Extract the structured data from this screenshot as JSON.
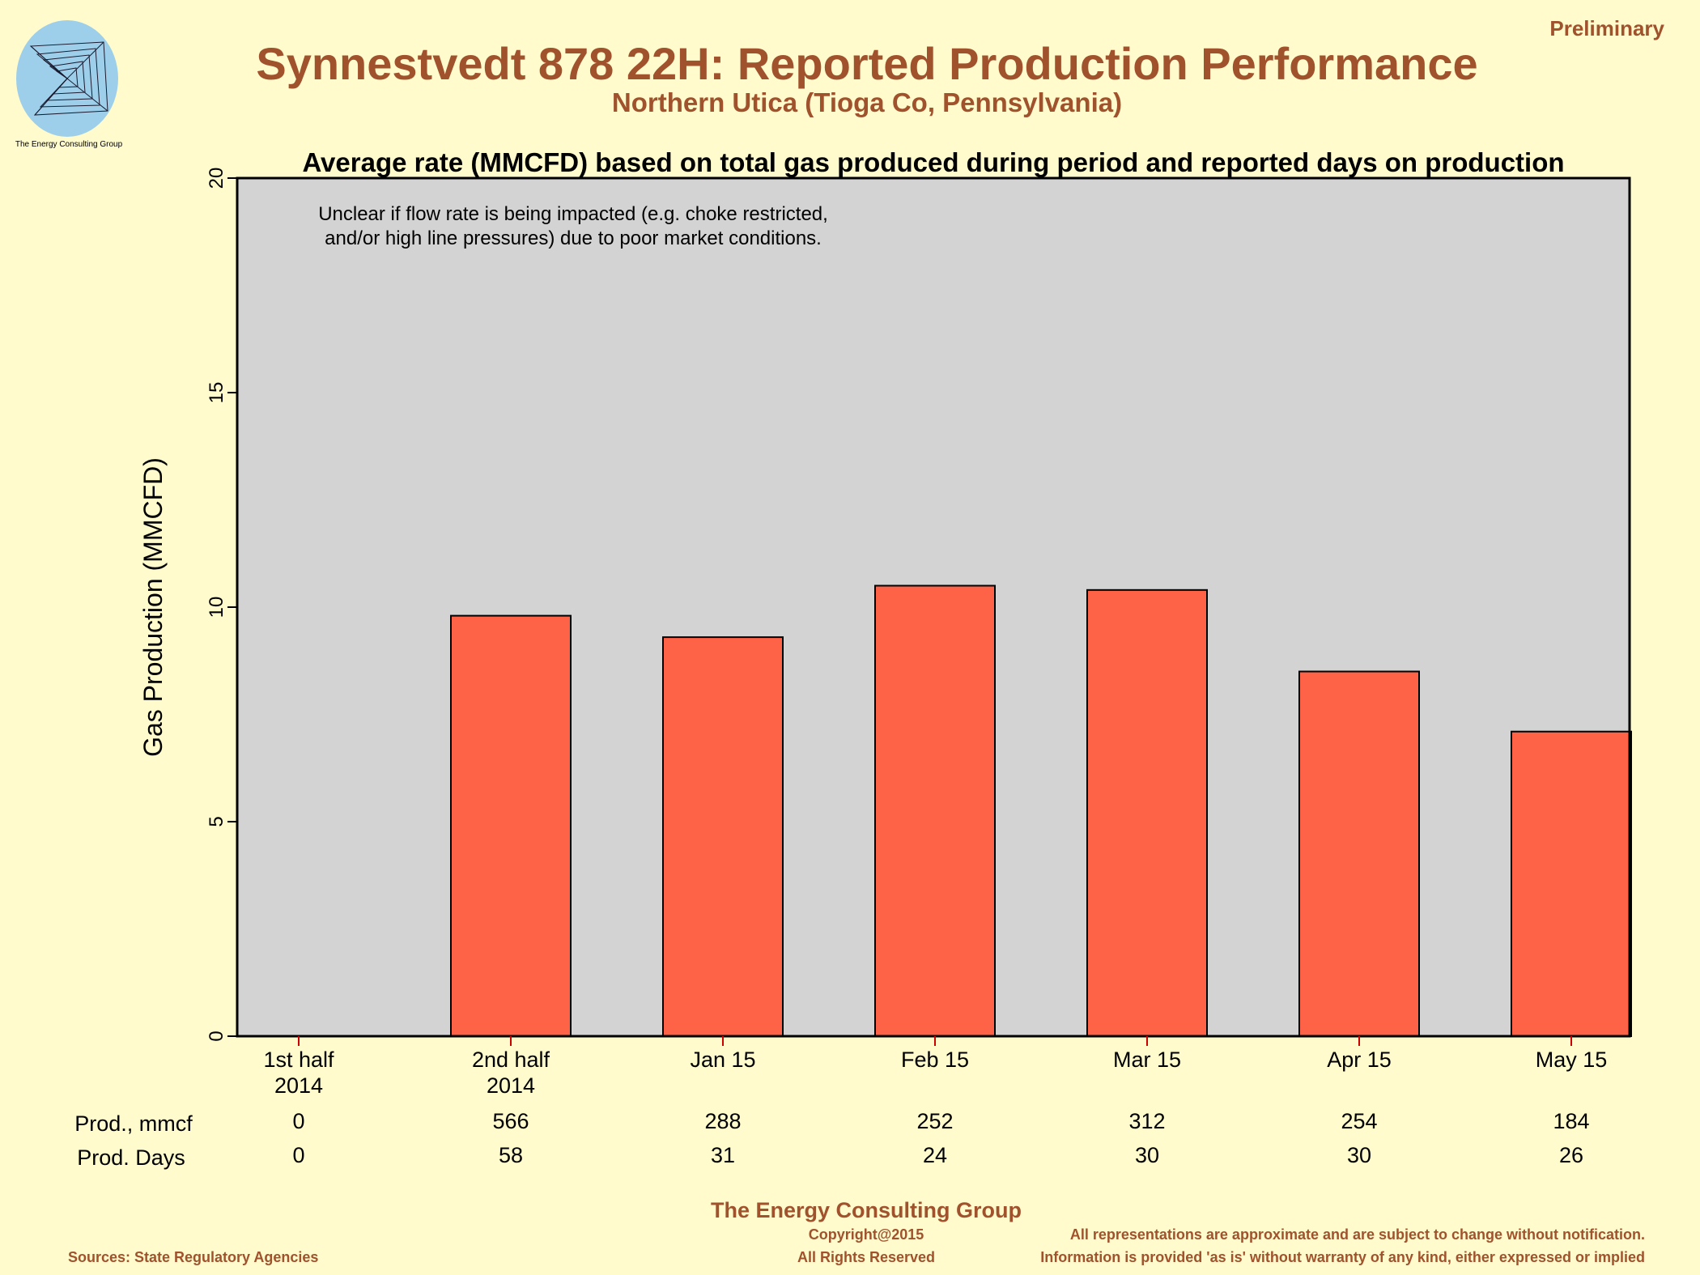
{
  "header": {
    "status": "Preliminary",
    "title": "Synnestvedt 878 22H: Reported Production Performance",
    "subtitle": "Northern Utica (Tioga Co, Pennsylvania)",
    "logo_text": "The Energy Consulting Group"
  },
  "colors": {
    "background": "#fffbcc",
    "brand_text": "#a0522d",
    "plot_background": "#d3d3d3",
    "bar_fill": "#ff6347",
    "axis_tick": "#cc0000"
  },
  "chart_data": {
    "type": "bar",
    "title": "Average rate (MMCFD) based on total gas produced during period and reported days on production",
    "ylabel": "Gas Production (MMCFD)",
    "xlabel": "",
    "ylim": [
      0,
      20
    ],
    "yticks": [
      0,
      5,
      10,
      15,
      20
    ],
    "categories": [
      [
        "1st half",
        "2014"
      ],
      [
        "2nd half",
        "2014"
      ],
      [
        "Jan 15"
      ],
      [
        "Feb 15"
      ],
      [
        "Mar 15"
      ],
      [
        "Apr 15"
      ],
      [
        "May 15"
      ]
    ],
    "values": [
      0,
      9.8,
      9.3,
      10.5,
      10.4,
      8.5,
      7.1
    ],
    "annotation": [
      "Unclear if flow rate is being impacted (e.g. choke restricted,",
      "and/or high line pressures) due to poor market conditions."
    ],
    "grid": false,
    "legend": "none",
    "table_rows": [
      {
        "label": "Prod., mmcf",
        "values": [
          "0",
          "566",
          "288",
          "252",
          "312",
          "254",
          "184"
        ]
      },
      {
        "label": "Prod. Days",
        "values": [
          "0",
          "58",
          "31",
          "24",
          "30",
          "30",
          "26"
        ]
      }
    ]
  },
  "footer": {
    "company": "The Energy Consulting Group",
    "copyright": "Copyright@2015",
    "rights": "All Rights Reserved",
    "sources": "Sources: State Regulatory Agencies",
    "disclaimer_1": "All representations are approximate and are subject to change without notification.",
    "disclaimer_2": "Information is provided 'as is' without warranty of any kind, either expressed or implied"
  }
}
